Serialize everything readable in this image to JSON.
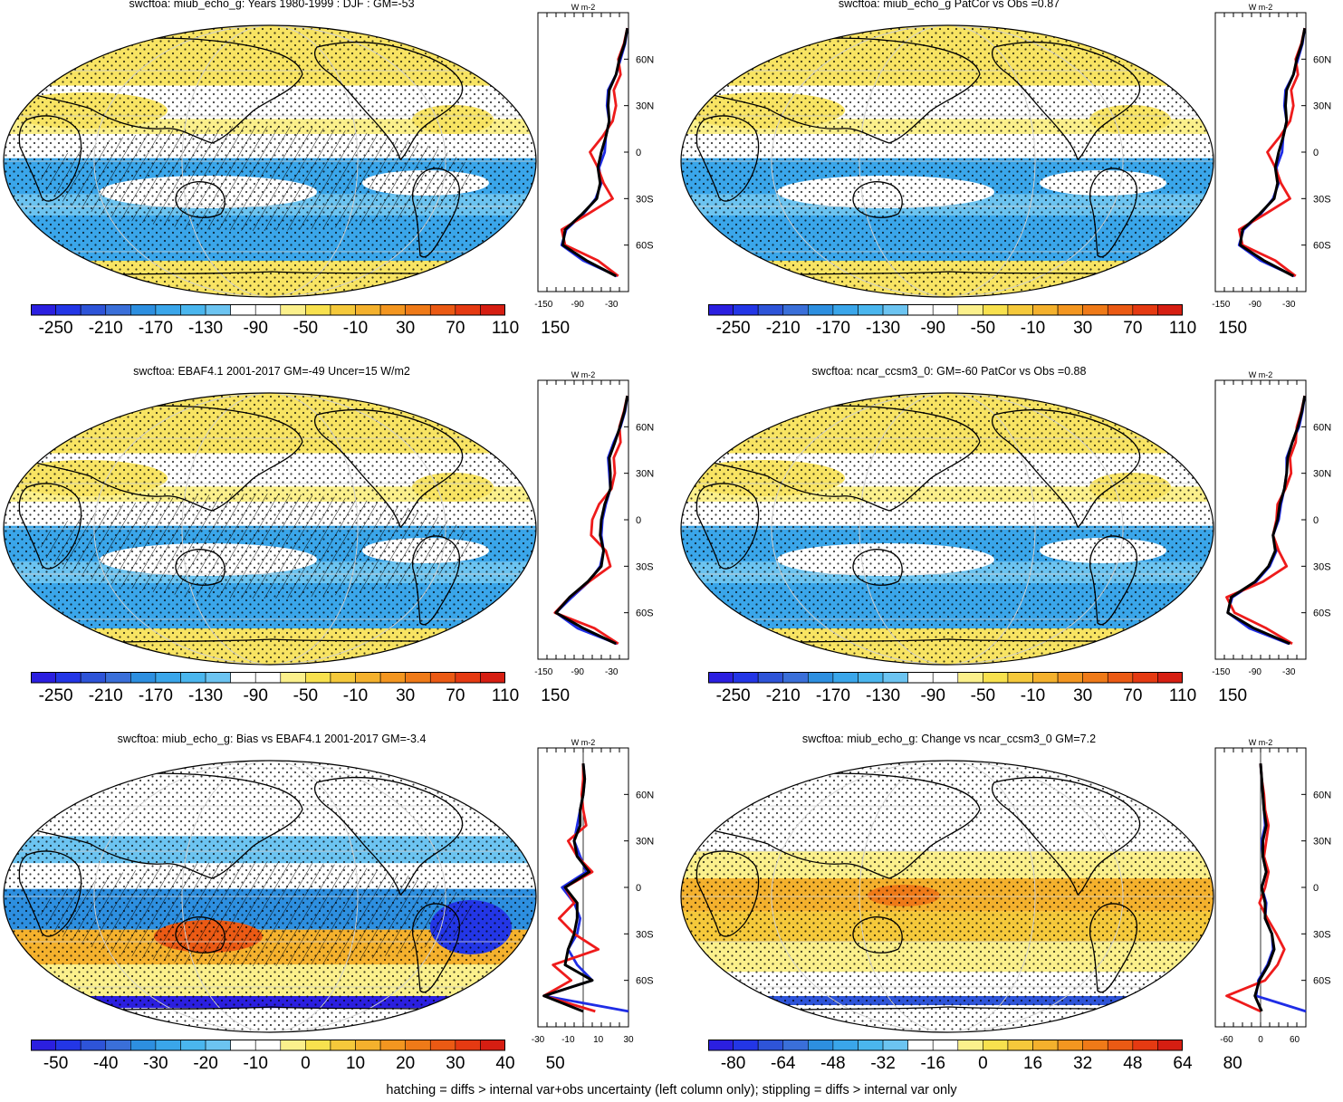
{
  "footer": "hatching = diffs > internal var+obs uncertainty (left column only); stippling = diffs > internal var only",
  "colors": {
    "palette_main": [
      "#2b1fe0",
      "#2336e6",
      "#2e54d8",
      "#3a6fd9",
      "#2d8fe0",
      "#3aa6ea",
      "#4ab6ee",
      "#6cc4f1",
      "#ffffff",
      "#ffffff",
      "#fbf08c",
      "#f8e14e",
      "#f5c93b",
      "#f4b12d",
      "#f39620",
      "#ef7a18",
      "#eb5a14",
      "#e53a12",
      "#d61e12"
    ],
    "background": "#ffffff",
    "land_line": "#000000",
    "series_blue": "#1f2de6",
    "series_red": "#ee1b1b",
    "series_black": "#000000"
  },
  "panels": [
    {
      "title": "swcftoa: miub_echo_g: Years 1980-1999 : DJF : GM=-53",
      "map_kind": "mean",
      "hatch": true,
      "stipple": true,
      "colorbar_labels": [
        "-250",
        "-210",
        "-170",
        "-130",
        "-90",
        "-50",
        "-10",
        "30",
        "70",
        "110",
        "150"
      ],
      "zonal_units": "W m-2",
      "zonal_xticks": [
        "-150",
        "-90",
        "-30"
      ],
      "zonal_xrange": [
        -160,
        0
      ],
      "lat_labels": [
        "60N",
        "30N",
        "0",
        "30S",
        "60S"
      ],
      "chart_data": {
        "type": "line",
        "y_label": "latitude",
        "lat": [
          80,
          70,
          60,
          50,
          40,
          30,
          20,
          10,
          0,
          -10,
          -20,
          -30,
          -40,
          -50,
          -60,
          -70,
          -80
        ],
        "series": [
          {
            "name": "blue",
            "color": "#1f2de6",
            "values": [
              -2,
              -6,
              -14,
              -22,
              -36,
              -38,
              -34,
              -40,
              -42,
              -52,
              -48,
              -58,
              -80,
              -110,
              -118,
              -80,
              -20
            ]
          },
          {
            "name": "red",
            "color": "#ee1b1b",
            "values": [
              -2,
              -8,
              -18,
              -14,
              -26,
              -22,
              -28,
              -46,
              -68,
              -54,
              -44,
              -28,
              -72,
              -118,
              -112,
              -54,
              -18
            ]
          },
          {
            "name": "black",
            "color": "#000000",
            "values": [
              -2,
              -7,
              -16,
              -22,
              -34,
              -36,
              -34,
              -40,
              -48,
              -54,
              -50,
              -56,
              -82,
              -112,
              -116,
              -74,
              -22
            ]
          }
        ]
      }
    },
    {
      "title": "swcftoa: miub_echo_g PatCor vs Obs =0.87",
      "map_kind": "mean",
      "hatch": false,
      "stipple": true,
      "colorbar_labels": [
        "-250",
        "-210",
        "-170",
        "-130",
        "-90",
        "-50",
        "-10",
        "30",
        "70",
        "110",
        "150"
      ],
      "zonal_units": "W m-2",
      "zonal_xticks": [
        "-150",
        "-90",
        "-30"
      ],
      "zonal_xrange": [
        -160,
        0
      ],
      "lat_labels": [
        "60N",
        "30N",
        "0",
        "30S",
        "60S"
      ],
      "chart_data": {
        "type": "line",
        "y_label": "latitude",
        "lat": [
          80,
          70,
          60,
          50,
          40,
          30,
          20,
          10,
          0,
          -10,
          -20,
          -30,
          -40,
          -50,
          -60,
          -70,
          -80
        ],
        "series": [
          {
            "name": "blue",
            "color": "#1f2de6",
            "values": [
              -2,
              -6,
              -14,
              -22,
              -36,
              -38,
              -34,
              -40,
              -42,
              -52,
              -48,
              -58,
              -80,
              -110,
              -118,
              -80,
              -20
            ]
          },
          {
            "name": "red",
            "color": "#ee1b1b",
            "values": [
              -2,
              -8,
              -18,
              -14,
              -26,
              -22,
              -28,
              -46,
              -68,
              -54,
              -44,
              -28,
              -72,
              -118,
              -112,
              -54,
              -18
            ]
          },
          {
            "name": "black",
            "color": "#000000",
            "values": [
              -2,
              -7,
              -16,
              -22,
              -34,
              -36,
              -34,
              -40,
              -48,
              -54,
              -50,
              -56,
              -82,
              -112,
              -116,
              -74,
              -22
            ]
          }
        ]
      }
    },
    {
      "title": "swcftoa: EBAF4.1 2001-2017 GM=-49 Uncer=15 W/m2",
      "map_kind": "mean",
      "hatch": true,
      "stipple": true,
      "colorbar_labels": [
        "-250",
        "-210",
        "-170",
        "-130",
        "-90",
        "-50",
        "-10",
        "30",
        "70",
        "110",
        "150"
      ],
      "zonal_units": "W m-2",
      "zonal_xticks": [
        "-150",
        "-90",
        "-30"
      ],
      "zonal_xrange": [
        -160,
        0
      ],
      "lat_labels": [
        "60N",
        "30N",
        "0",
        "30S",
        "60S"
      ],
      "chart_data": {
        "type": "line",
        "y_label": "latitude",
        "lat": [
          80,
          70,
          60,
          50,
          40,
          30,
          20,
          10,
          0,
          -10,
          -20,
          -30,
          -40,
          -50,
          -60,
          -70,
          -80
        ],
        "series": [
          {
            "name": "blue",
            "color": "#1f2de6",
            "values": [
              -2,
              -6,
              -14,
              -26,
              -36,
              -34,
              -32,
              -40,
              -46,
              -48,
              -44,
              -50,
              -70,
              -100,
              -128,
              -90,
              -20
            ]
          },
          {
            "name": "red",
            "color": "#ee1b1b",
            "values": [
              -2,
              -8,
              -16,
              -14,
              -26,
              -24,
              -30,
              -52,
              -64,
              -66,
              -40,
              -32,
              -70,
              -104,
              -130,
              -60,
              -18
            ]
          },
          {
            "name": "black",
            "color": "#000000",
            "values": [
              -2,
              -7,
              -15,
              -24,
              -34,
              -32,
              -32,
              -42,
              -48,
              -50,
              -44,
              -48,
              -72,
              -104,
              -128,
              -80,
              -22
            ]
          }
        ]
      }
    },
    {
      "title": "swcftoa: ncar_ccsm3_0: GM=-60 PatCor vs Obs =0.88",
      "map_kind": "mean",
      "hatch": false,
      "stipple": true,
      "colorbar_labels": [
        "-250",
        "-210",
        "-170",
        "-130",
        "-90",
        "-50",
        "-10",
        "30",
        "70",
        "110",
        "150"
      ],
      "zonal_units": "W m-2",
      "zonal_xticks": [
        "-150",
        "-90",
        "-30"
      ],
      "zonal_xrange": [
        -160,
        0
      ],
      "lat_labels": [
        "60N",
        "30N",
        "0",
        "30S",
        "60S"
      ],
      "chart_data": {
        "type": "line",
        "y_label": "latitude",
        "lat": [
          80,
          70,
          60,
          50,
          40,
          30,
          20,
          10,
          0,
          -10,
          -20,
          -30,
          -40,
          -50,
          -60,
          -70,
          -80
        ],
        "series": [
          {
            "name": "blue",
            "color": "#1f2de6",
            "values": [
              -2,
              -6,
              -12,
              -24,
              -34,
              -34,
              -38,
              -44,
              -48,
              -58,
              -52,
              -64,
              -88,
              -130,
              -138,
              -100,
              -30
            ]
          },
          {
            "name": "red",
            "color": "#ee1b1b",
            "values": [
              -2,
              -8,
              -16,
              -18,
              -28,
              -26,
              -36,
              -50,
              -52,
              -58,
              -48,
              -34,
              -76,
              -140,
              -126,
              -70,
              -24
            ]
          },
          {
            "name": "black",
            "color": "#000000",
            "values": [
              -2,
              -7,
              -14,
              -24,
              -32,
              -34,
              -38,
              -46,
              -50,
              -58,
              -54,
              -66,
              -90,
              -132,
              -138,
              -92,
              -28
            ]
          }
        ]
      }
    },
    {
      "title": "swcftoa: miub_echo_g: Bias vs EBAF4.1 2001-2017 GM=-3.4",
      "map_kind": "bias",
      "hatch": true,
      "stipple": true,
      "colorbar_labels": [
        "-50",
        "-40",
        "-30",
        "-20",
        "-10",
        "0",
        "10",
        "20",
        "30",
        "40",
        "50"
      ],
      "zonal_units": "W m-2",
      "zonal_xticks": [
        "-30",
        "-10",
        "10",
        "30"
      ],
      "zonal_xrange": [
        -30,
        30
      ],
      "lat_labels": [
        "60N",
        "30N",
        "0",
        "30S",
        "60S"
      ],
      "chart_data": {
        "type": "line",
        "y_label": "latitude",
        "lat": [
          80,
          70,
          60,
          50,
          40,
          30,
          20,
          10,
          0,
          -10,
          -20,
          -30,
          -40,
          -50,
          -60,
          -70,
          -80
        ],
        "series": [
          {
            "name": "blue",
            "color": "#1f2de6",
            "values": [
              0,
              1,
              0,
              -2,
              -4,
              -6,
              -2,
              2,
              -14,
              -6,
              -2,
              -4,
              -10,
              -4,
              6,
              -26,
              30
            ]
          },
          {
            "name": "red",
            "color": "#ee1b1b",
            "values": [
              0,
              0,
              -1,
              0,
              2,
              -10,
              -4,
              6,
              -12,
              -6,
              -16,
              -6,
              10,
              -20,
              -8,
              -26,
              8
            ]
          },
          {
            "name": "black",
            "color": "#000000",
            "values": [
              0,
              1,
              0,
              -2,
              -2,
              -6,
              -4,
              4,
              -12,
              -4,
              -4,
              -6,
              -10,
              -12,
              6,
              -26,
              0
            ]
          }
        ]
      }
    },
    {
      "title": "swcftoa: miub_echo_g: Change vs ncar_ccsm3_0 GM=7.2",
      "map_kind": "change",
      "hatch": false,
      "stipple": true,
      "colorbar_labels": [
        "-80",
        "-64",
        "-48",
        "-32",
        "-16",
        "0",
        "16",
        "32",
        "48",
        "64",
        "80"
      ],
      "zonal_units": "W m-2",
      "zonal_xticks": [
        "-60",
        "0",
        "60"
      ],
      "zonal_xrange": [
        -80,
        80
      ],
      "lat_labels": [
        "60N",
        "30N",
        "0",
        "30S",
        "60S"
      ],
      "chart_data": {
        "type": "line",
        "y_label": "latitude",
        "lat": [
          80,
          70,
          60,
          50,
          40,
          30,
          20,
          10,
          0,
          -10,
          -20,
          -30,
          -40,
          -50,
          -60,
          -70,
          -80
        ],
        "series": [
          {
            "name": "blue",
            "color": "#1f2de6",
            "values": [
              0,
              2,
              4,
              6,
              8,
              2,
              4,
              10,
              2,
              10,
              8,
              20,
              22,
              12,
              -4,
              -8,
              80
            ]
          },
          {
            "name": "red",
            "color": "#ee1b1b",
            "values": [
              0,
              2,
              6,
              8,
              14,
              10,
              6,
              14,
              8,
              -2,
              12,
              28,
              42,
              30,
              8,
              -60,
              0
            ]
          },
          {
            "name": "black",
            "color": "#000000",
            "values": [
              0,
              2,
              4,
              6,
              10,
              4,
              4,
              10,
              2,
              8,
              8,
              20,
              24,
              14,
              -2,
              -10,
              2
            ]
          }
        ]
      }
    }
  ]
}
